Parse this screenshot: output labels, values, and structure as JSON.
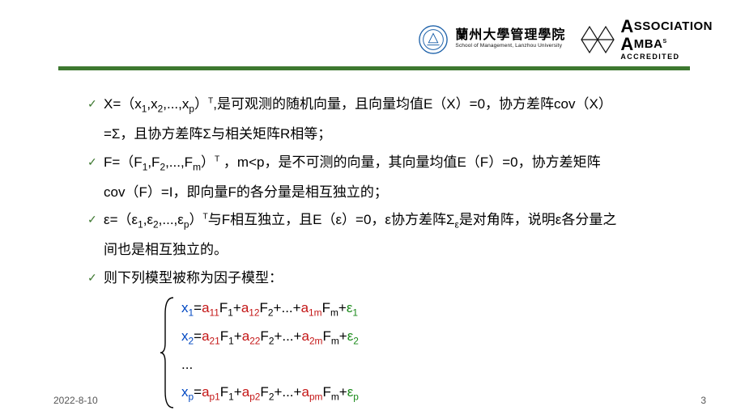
{
  "header": {
    "uni_cn": "蘭州大學管理學院",
    "uni_en": "School of Management, Lanzhou University",
    "amba_top_prefix": "A",
    "amba_top_rest": "SSOCIATION",
    "amba_mid": "MBA",
    "amba_bot": "ACCREDITED",
    "seal_stroke": "#1a5fa8",
    "amba_stroke": "#111111"
  },
  "colors": {
    "rule": "#3d7830",
    "x": "#0047c2",
    "a": "#c41616",
    "eps": "#1a8a1a",
    "text": "#000000"
  },
  "bullets": [
    {
      "lines": [
        "X=（x<sub>1</sub>,x<sub>2</sub>,...,x<sub>p</sub>）<sup>T</sup>,是可观测的随机向量，且向量均值E（X）=0，协方差阵cov（X）",
        "=Σ，且协方差阵Σ与相关矩阵R相等；"
      ]
    },
    {
      "lines": [
        "F=（F<sub>1</sub>,F<sub>2</sub>,...,F<sub>m</sub>）<sup>T</sup> ，m&lt;p，是不可测的向量，其向量均值E（F）=0，协方差矩阵",
        "cov（F）=I，即向量F的各分量是相互独立的；"
      ]
    },
    {
      "lines": [
        "ε=（ε<sub>1</sub>,ε<sub>2</sub>,...,ε<sub>p</sub>）<sup>T</sup>与F相互独立，且E（ε）=0，ε协方差阵Σ<sub>ε</sub>是对角阵，说明ε各分量之",
        "间也是相互独立的。"
      ]
    },
    {
      "lines": [
        "则下列模型被称为因子模型："
      ]
    }
  ],
  "equations": [
    {
      "x": "x",
      "xi": "1",
      "terms": [
        [
          "a",
          "11",
          "F",
          "1"
        ],
        [
          "a",
          "12",
          "F",
          "2"
        ]
      ],
      "last": [
        "a",
        "1m",
        "F",
        "m"
      ],
      "eps": "ε",
      "ei": "1"
    },
    {
      "x": "x",
      "xi": "2",
      "terms": [
        [
          "a",
          "21",
          "F",
          "1"
        ],
        [
          "a",
          "22",
          "F",
          "2"
        ]
      ],
      "last": [
        "a",
        "2m",
        "F",
        "m"
      ],
      "eps": "ε",
      "ei": "2"
    },
    {
      "ellipsis": "..."
    },
    {
      "x": "x",
      "xi": "p",
      "terms": [
        [
          "a",
          "p1",
          "F",
          "1"
        ],
        [
          "a",
          "p2",
          "F",
          "2"
        ]
      ],
      "last": [
        "a",
        "pm",
        "F",
        "m"
      ],
      "eps": "ε",
      "ei": "p"
    }
  ],
  "footer": {
    "date": "2022-8-10",
    "page": "3"
  }
}
